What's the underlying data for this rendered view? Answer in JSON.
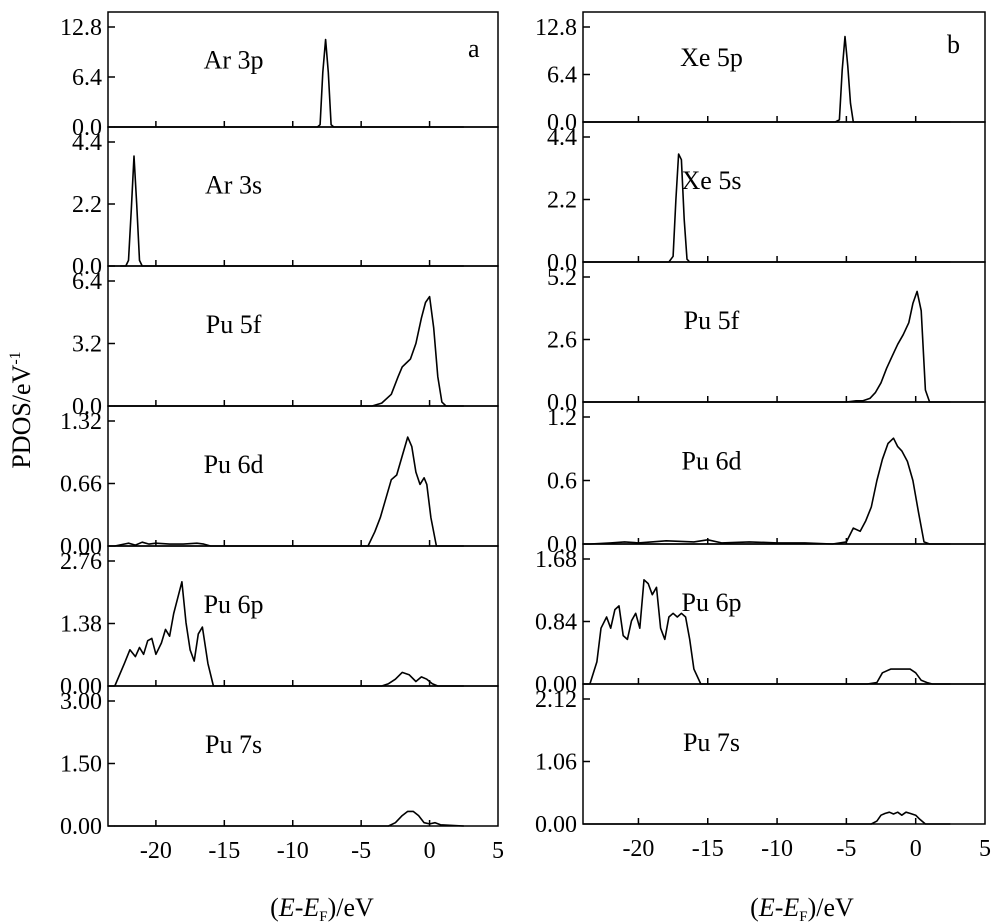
{
  "figure": {
    "ylabel": "PDOS/eV",
    "ylabel_sup": "-1",
    "xlabel_prefix": "(",
    "xlabel_E": "E",
    "xlabel_dash": "-",
    "xlabel_EF": "E",
    "xlabel_sub": "F",
    "xlabel_suffix": ")/eV"
  },
  "chart_data": [
    {
      "panel": "a",
      "type": "line",
      "xlim": [
        -23.5,
        5
      ],
      "xticks": [
        -20,
        -15,
        -10,
        -5,
        0,
        5
      ],
      "xtick_labels": [
        "-20",
        "-15",
        "-10",
        "-5",
        "0",
        "5"
      ],
      "subplots": [
        {
          "label": "Ar 3p",
          "ylim": [
            0,
            12.8
          ],
          "yticks": [
            "0.0",
            "6.4",
            "12.8"
          ],
          "x": [
            -23,
            -8.2,
            -8.0,
            -7.8,
            -7.6,
            -7.4,
            -7.2,
            -7.0,
            2.5
          ],
          "y": [
            0,
            0,
            0.3,
            7.0,
            11.2,
            7.0,
            0.3,
            0,
            0
          ]
        },
        {
          "label": "Ar 3s",
          "ylim": [
            0,
            4.4
          ],
          "yticks": [
            "0.0",
            "2.2",
            "4.4"
          ],
          "x": [
            -22.6,
            -22.2,
            -22.0,
            -21.8,
            -21.6,
            -21.4,
            -21.2,
            -21.0,
            -20.7,
            2.5
          ],
          "y": [
            0,
            0,
            0.2,
            2.0,
            3.9,
            2.2,
            0.2,
            0,
            0,
            0
          ]
        },
        {
          "label": "Pu 5f",
          "ylim": [
            0,
            6.4
          ],
          "yticks": [
            "0.0",
            "3.2",
            "6.4"
          ],
          "x": [
            -23,
            -5.5,
            -4.2,
            -3.5,
            -2.8,
            -2.3,
            -2.0,
            -1.7,
            -1.4,
            -1.0,
            -0.6,
            -0.3,
            0.0,
            0.3,
            0.6,
            0.9,
            1.2,
            2.5
          ],
          "y": [
            0,
            0,
            0,
            0.15,
            0.6,
            1.5,
            2.0,
            2.2,
            2.4,
            3.2,
            4.5,
            5.3,
            5.6,
            4.0,
            1.5,
            0.2,
            0,
            0
          ]
        },
        {
          "label": "Pu 6d",
          "ylim": [
            0,
            1.32
          ],
          "yticks": [
            "0.00",
            "0.66",
            "1.32"
          ],
          "x": [
            -23,
            -22,
            -21.5,
            -21,
            -20.5,
            -20,
            -19,
            -18,
            -17,
            -16.5,
            -16,
            -4.5,
            -4.0,
            -3.6,
            -3.2,
            -2.8,
            -2.4,
            -2.0,
            -1.6,
            -1.3,
            -1.0,
            -0.7,
            -0.4,
            -0.2,
            0.1,
            0.5,
            2.5
          ],
          "y": [
            0,
            0.03,
            0.01,
            0.04,
            0.02,
            0.03,
            0.02,
            0.02,
            0.03,
            0.02,
            0,
            0,
            0.15,
            0.3,
            0.5,
            0.7,
            0.75,
            0.95,
            1.15,
            1.05,
            0.78,
            0.65,
            0.72,
            0.65,
            0.3,
            0,
            0
          ]
        },
        {
          "label": "Pu 6p",
          "ylim": [
            0,
            2.76
          ],
          "yticks": [
            "0.00",
            "1.38",
            "2.76"
          ],
          "x": [
            -23,
            -22.3,
            -21.9,
            -21.5,
            -21.2,
            -20.9,
            -20.6,
            -20.3,
            -20.0,
            -19.6,
            -19.3,
            -19.0,
            -18.7,
            -18.4,
            -18.1,
            -17.8,
            -17.5,
            -17.2,
            -16.9,
            -16.6,
            -16.2,
            -15.8,
            -3.5,
            -3.0,
            -2.5,
            -2.0,
            -1.5,
            -1.0,
            -0.6,
            -0.2,
            0.2,
            0.6,
            1.0,
            2.5
          ],
          "y": [
            0,
            0.5,
            0.8,
            0.65,
            0.85,
            0.7,
            1.0,
            1.05,
            0.7,
            0.95,
            1.25,
            1.1,
            1.6,
            1.95,
            2.3,
            1.4,
            0.8,
            0.55,
            1.15,
            1.3,
            0.5,
            0,
            0,
            0.05,
            0.15,
            0.3,
            0.25,
            0.1,
            0.2,
            0.15,
            0.05,
            0,
            0,
            0
          ]
        },
        {
          "label": "Pu 7s",
          "ylim": [
            0,
            3.0
          ],
          "yticks": [
            "0.00",
            "1.50",
            "3.00"
          ],
          "x": [
            -23,
            -3.0,
            -2.5,
            -2.0,
            -1.6,
            -1.2,
            -0.8,
            -0.4,
            0.0,
            0.4,
            0.8,
            2.5
          ],
          "y": [
            0,
            0,
            0.08,
            0.25,
            0.35,
            0.35,
            0.25,
            0.08,
            0.05,
            0.08,
            0.03,
            0
          ]
        }
      ]
    },
    {
      "panel": "b",
      "type": "line",
      "xlim": [
        -24,
        5
      ],
      "xticks": [
        -20,
        -15,
        -10,
        -5,
        0,
        5
      ],
      "xtick_labels": [
        "-20",
        "-15",
        "-10",
        "-5",
        "0",
        "5"
      ],
      "subplots": [
        {
          "label": "Xe 5p",
          "ylim": [
            0,
            12.8
          ],
          "yticks": [
            "0.0",
            "6.4",
            "12.8"
          ],
          "x": [
            -23.5,
            -5.8,
            -5.5,
            -5.3,
            -5.1,
            -4.9,
            -4.7,
            -4.5,
            2.5
          ],
          "y": [
            0,
            0,
            0.3,
            7.0,
            11.5,
            7.5,
            2.5,
            0,
            0
          ]
        },
        {
          "label": "Xe 5s",
          "ylim": [
            0,
            4.4
          ],
          "yticks": [
            "0.0",
            "2.2",
            "4.4"
          ],
          "x": [
            -23.5,
            -17.8,
            -17.5,
            -17.3,
            -17.1,
            -16.9,
            -16.7,
            -16.5,
            -16.3,
            2.5
          ],
          "y": [
            0,
            0,
            0.2,
            2.2,
            3.8,
            3.6,
            1.5,
            0.1,
            0,
            0
          ]
        },
        {
          "label": "Pu 5f",
          "ylim": [
            0,
            5.2
          ],
          "yticks": [
            "0.0",
            "2.6",
            "5.2"
          ],
          "x": [
            -23.5,
            -5.0,
            -4.3,
            -3.8,
            -3.3,
            -2.9,
            -2.5,
            -2.1,
            -1.7,
            -1.3,
            -0.9,
            -0.5,
            -0.2,
            0.1,
            0.4,
            0.7,
            1.0,
            2.5
          ],
          "y": [
            0,
            0,
            0.05,
            0.05,
            0.15,
            0.4,
            0.8,
            1.4,
            1.9,
            2.4,
            2.8,
            3.3,
            4.1,
            4.6,
            3.8,
            0.5,
            0,
            0
          ]
        },
        {
          "label": "Pu 6d",
          "ylim": [
            0,
            1.2
          ],
          "yticks": [
            "0.0",
            "0.6",
            "1.2"
          ],
          "x": [
            -23.5,
            -22,
            -21,
            -20,
            -18,
            -16,
            -15,
            -14,
            -12,
            -10,
            -8,
            -6,
            -5.0,
            -4.5,
            -4.0,
            -3.6,
            -3.2,
            -2.8,
            -2.4,
            -2.0,
            -1.6,
            -1.3,
            -1.0,
            -0.6,
            -0.2,
            0.2,
            0.6,
            1.0,
            2.5
          ],
          "y": [
            0,
            0.01,
            0.02,
            0.01,
            0.03,
            0.02,
            0.04,
            0.01,
            0.02,
            0.01,
            0.01,
            0,
            0.02,
            0.15,
            0.12,
            0.22,
            0.35,
            0.6,
            0.8,
            0.95,
            1.0,
            0.92,
            0.88,
            0.78,
            0.6,
            0.3,
            0.02,
            0,
            0
          ]
        },
        {
          "label": "Pu 6p",
          "ylim": [
            0,
            1.68
          ],
          "yticks": [
            "0.00",
            "0.84",
            "1.68"
          ],
          "x": [
            -23.5,
            -23.0,
            -22.7,
            -22.3,
            -22.0,
            -21.7,
            -21.4,
            -21.1,
            -20.8,
            -20.5,
            -20.2,
            -19.9,
            -19.6,
            -19.3,
            -19.0,
            -18.7,
            -18.4,
            -18.1,
            -17.8,
            -17.5,
            -17.2,
            -16.9,
            -16.6,
            -16.3,
            -16.0,
            -15.5,
            -3.5,
            -2.8,
            -2.4,
            -1.8,
            -1.0,
            -0.4,
            0.0,
            0.4,
            0.8,
            1.2,
            2.5
          ],
          "y": [
            0,
            0.3,
            0.75,
            0.9,
            0.75,
            1.0,
            1.05,
            0.65,
            0.6,
            0.85,
            0.95,
            0.75,
            1.4,
            1.35,
            1.2,
            1.3,
            0.75,
            0.6,
            0.9,
            0.95,
            0.9,
            0.95,
            0.9,
            0.6,
            0.2,
            0,
            0,
            0.02,
            0.15,
            0.2,
            0.2,
            0.2,
            0.15,
            0.05,
            0.02,
            0,
            0
          ]
        },
        {
          "label": "Pu 7s",
          "ylim": [
            0,
            2.12
          ],
          "yticks": [
            "0.00",
            "1.06",
            "2.12"
          ],
          "x": [
            -23.5,
            -3.2,
            -2.8,
            -2.5,
            -2.2,
            -1.9,
            -1.6,
            -1.3,
            -1.0,
            -0.7,
            -0.4,
            0.0,
            0.3,
            0.7,
            2.5
          ],
          "y": [
            0,
            0,
            0.05,
            0.15,
            0.18,
            0.2,
            0.17,
            0.2,
            0.15,
            0.2,
            0.18,
            0.15,
            0.08,
            0,
            0
          ]
        }
      ]
    }
  ]
}
